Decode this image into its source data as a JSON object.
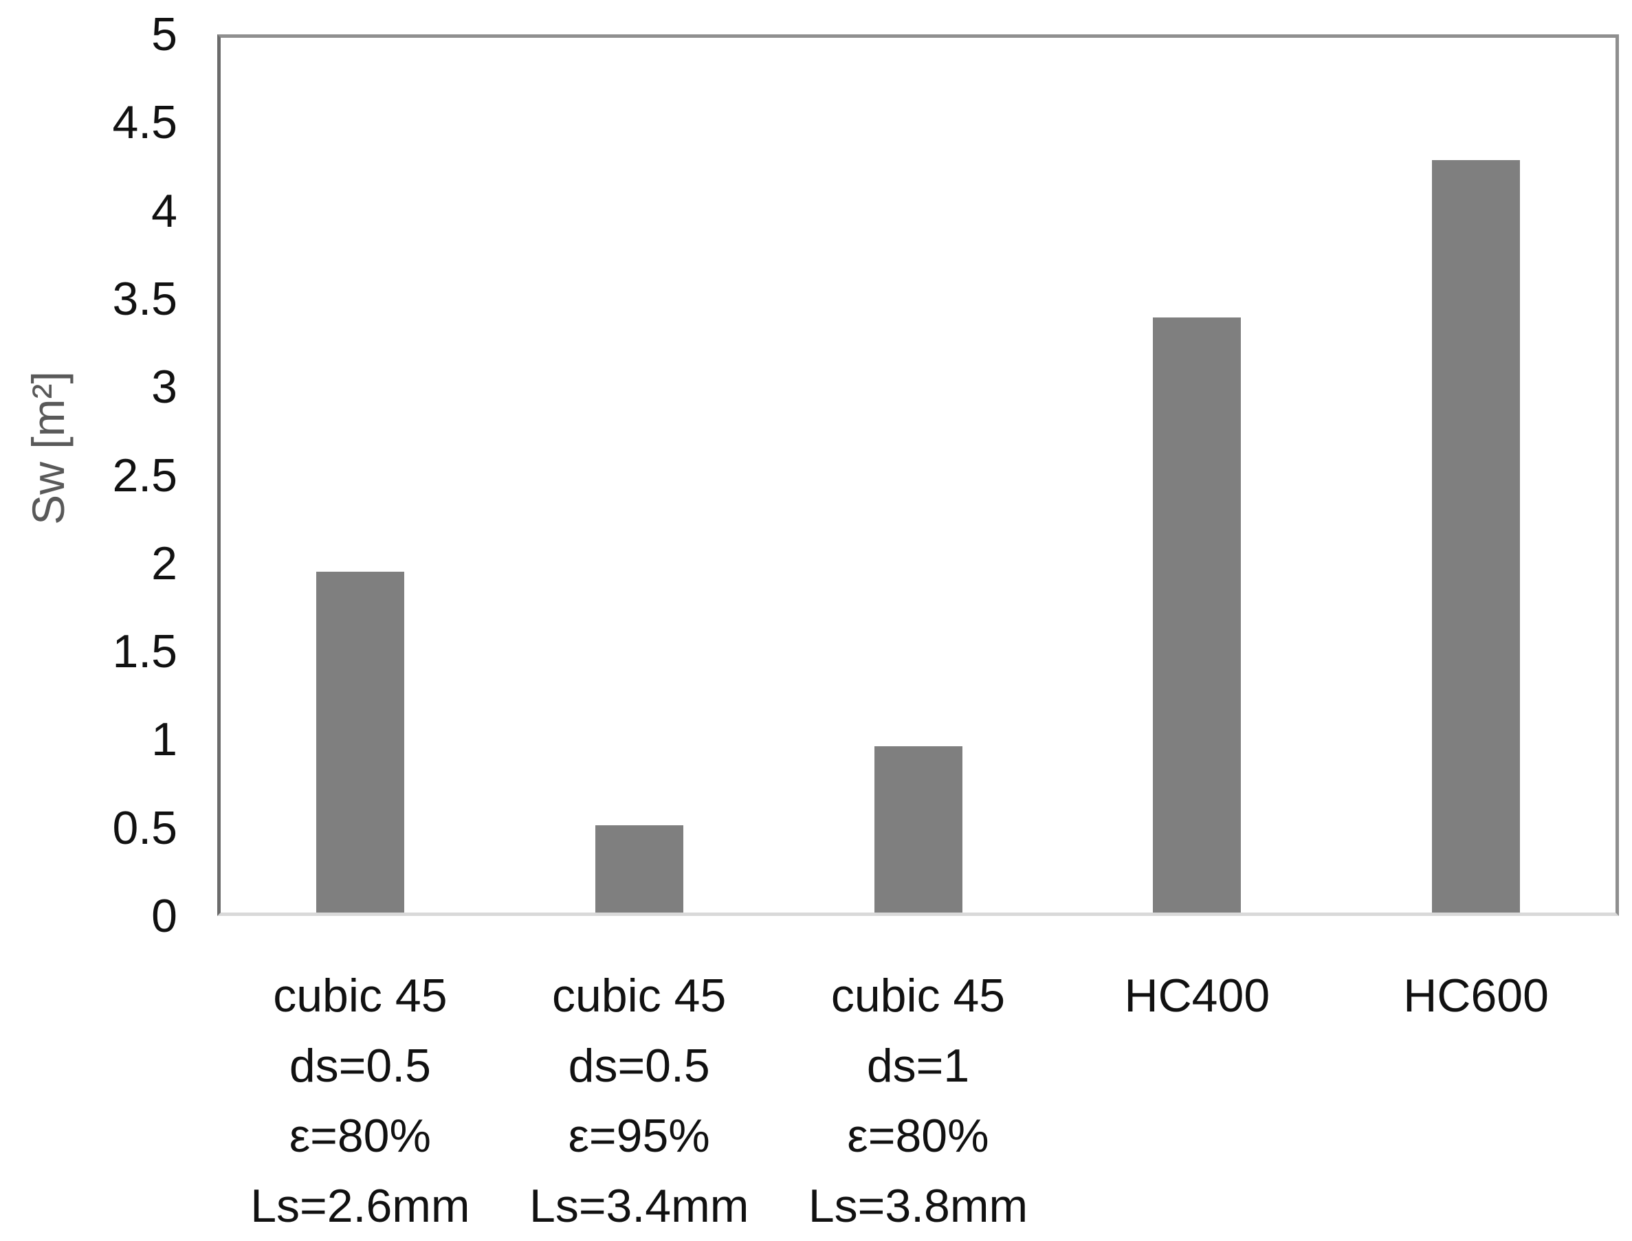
{
  "chart_data": {
    "type": "bar",
    "title": "",
    "xlabel": "",
    "ylabel": "Sw [m²]",
    "categories": [
      [
        "cubic 45",
        "ds=0.5",
        "ε=80%",
        "Ls=2.6mm"
      ],
      [
        "cubic 45",
        "ds=0.5",
        "ε=95%",
        "Ls=3.4mm"
      ],
      [
        "cubic 45",
        "ds=1",
        "ε=80%",
        "Ls=3.8mm"
      ],
      [
        "HC400"
      ],
      [
        "HC600"
      ]
    ],
    "values": [
      1.95,
      0.5,
      0.95,
      3.4,
      4.3
    ],
    "ylim": [
      0,
      5
    ],
    "ytick_step": 0.5,
    "yticks": [
      "0",
      "0.5",
      "1",
      "1.5",
      "2",
      "2.5",
      "3",
      "3.5",
      "4",
      "4.5",
      "5"
    ],
    "grid": false,
    "legend": null,
    "colors": {
      "bar_fill": "#7f7f7f",
      "plot_border": "#8f8f8f",
      "y_axis_line": "#6b6b6b",
      "baseline": "#d9d9d9",
      "tick_text": "#111111",
      "ylabel_text": "#595959",
      "background": "#ffffff"
    }
  }
}
